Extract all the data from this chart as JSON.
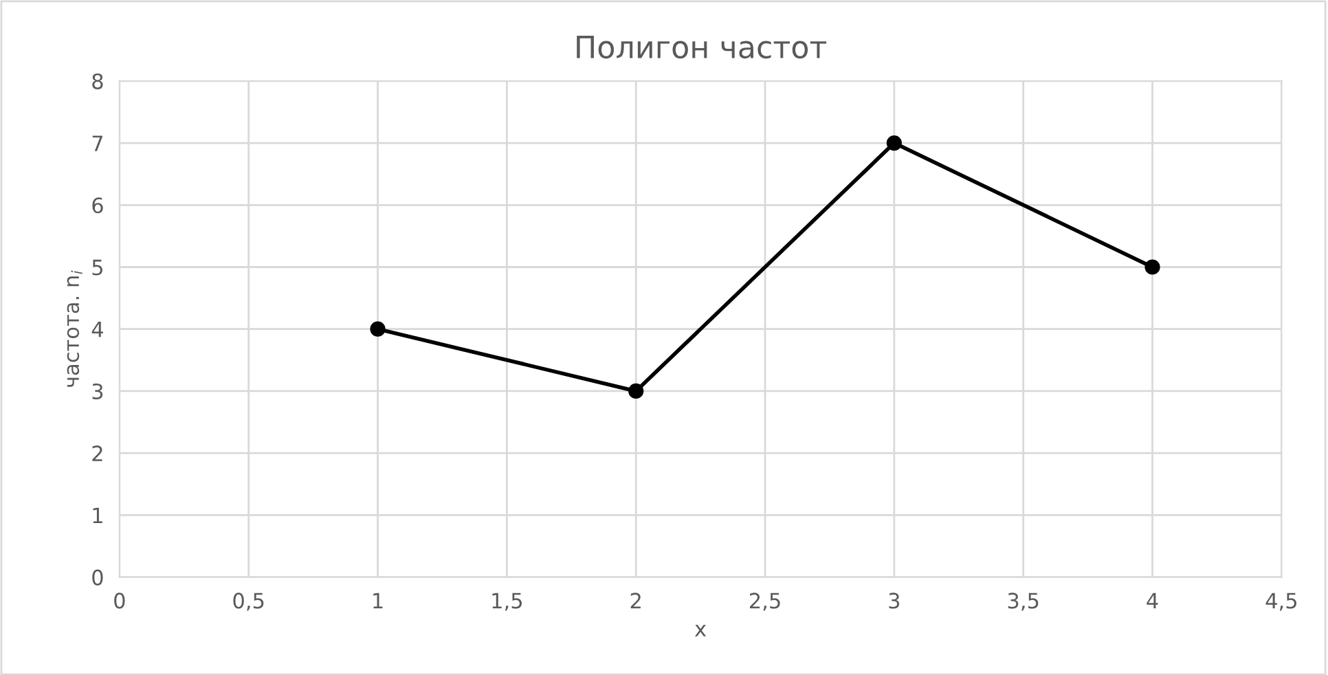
{
  "chart_data": {
    "type": "line",
    "title": "Полигон частот",
    "xlabel": "x",
    "ylabel": "частота. n$_{i}$",
    "x": [
      1,
      2,
      3,
      4
    ],
    "series": [
      {
        "color": "#000000",
        "values": [
          4,
          3,
          7,
          5
        ]
      }
    ],
    "xlim": [
      0,
      4.5
    ],
    "ylim": [
      0,
      8
    ],
    "xticks": [
      0,
      {
        "value": 0.5,
        "label": "0,5"
      },
      1,
      {
        "value": 1.5,
        "label": "1,5"
      },
      2,
      {
        "value": 2.5,
        "label": "2,5"
      },
      3,
      {
        "value": 3.5,
        "label": "3,5"
      },
      4,
      {
        "value": 4.5,
        "label": "4,5"
      }
    ],
    "yticks": [
      0,
      1,
      2,
      3,
      4,
      5,
      6,
      7,
      8
    ],
    "grid": true,
    "marker": "circle",
    "line_style": "solid"
  }
}
